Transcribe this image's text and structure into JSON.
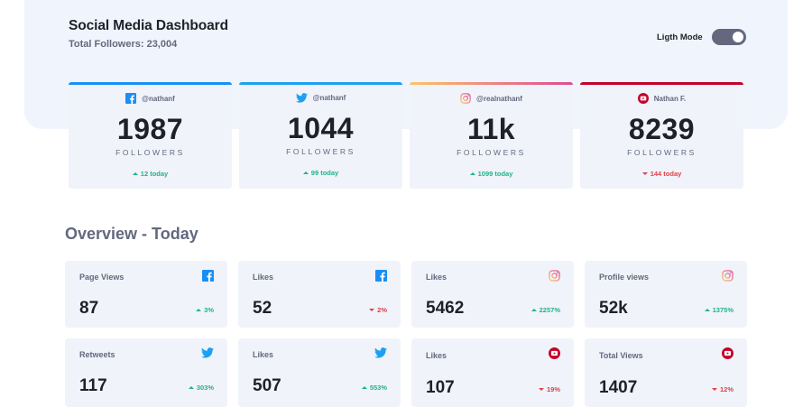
{
  "header": {
    "title": "Social Media Dashboard",
    "subtitle": "Total Followers: 23,004",
    "mode_label": "Ligth Mode",
    "toggle_on": true
  },
  "colors": {
    "facebook": "#198ff5",
    "twitter": "#1ca0f2",
    "instagram_start": "#fdc468",
    "instagram_end": "#df4996",
    "youtube": "#c4032a",
    "up": "#1db489",
    "down": "#dc414c"
  },
  "followers": [
    {
      "network": "facebook",
      "icon": "facebook-icon",
      "handle": "@nathanf",
      "count": "1987",
      "label": "FOLLOWERS",
      "change": "12 today",
      "trend": "up"
    },
    {
      "network": "twitter",
      "icon": "twitter-icon",
      "handle": "@nathanf",
      "count": "1044",
      "label": "FOLLOWERS",
      "change": "99 today",
      "trend": "up"
    },
    {
      "network": "instagram",
      "icon": "instagram-icon",
      "handle": "@realnathanf",
      "count": "11k",
      "label": "FOLLOWERS",
      "change": "1099 today",
      "trend": "up"
    },
    {
      "network": "youtube",
      "icon": "youtube-icon",
      "handle": "Nathan F.",
      "count": "8239",
      "label": "FOLLOWERS",
      "change": "144 today",
      "trend": "down"
    }
  ],
  "overview": {
    "title": "Overview - Today",
    "cards": [
      {
        "metric": "Page Views",
        "icon": "facebook-icon",
        "value": "87",
        "change": "3%",
        "trend": "up"
      },
      {
        "metric": "Likes",
        "icon": "facebook-icon",
        "value": "52",
        "change": "2%",
        "trend": "down"
      },
      {
        "metric": "Likes",
        "icon": "instagram-icon",
        "value": "5462",
        "change": "2257%",
        "trend": "up"
      },
      {
        "metric": "Profile views",
        "icon": "instagram-icon",
        "value": "52k",
        "change": "1375%",
        "trend": "up"
      },
      {
        "metric": "Retweets",
        "icon": "twitter-icon",
        "value": "117",
        "change": "303%",
        "trend": "up"
      },
      {
        "metric": "Likes",
        "icon": "twitter-icon",
        "value": "507",
        "change": "553%",
        "trend": "up"
      },
      {
        "metric": "Likes",
        "icon": "youtube-icon",
        "value": "107",
        "change": "19%",
        "trend": "down"
      },
      {
        "metric": "Total Views",
        "icon": "youtube-icon",
        "value": "1407",
        "change": "12%",
        "trend": "down"
      }
    ]
  }
}
